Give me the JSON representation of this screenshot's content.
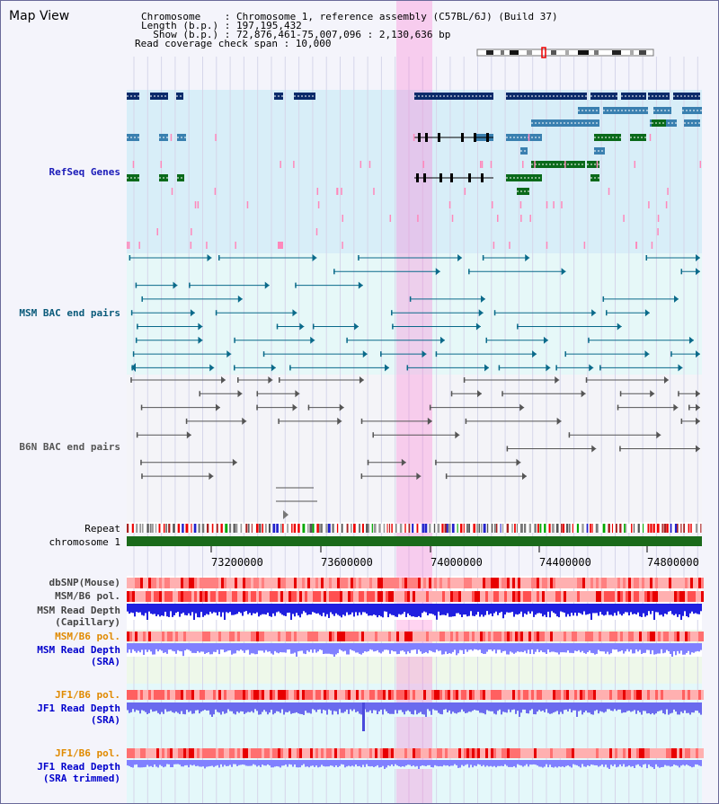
{
  "header": {
    "title": "Map View",
    "chromosome_line": "Chromosome    : Chromosome 1, reference assembly (C57BL/6J) (Build 37)",
    "length_line": "Length (b.p.) : 197,195,432",
    "show_line": "  Show (b.p.) : 72,876,461-75,007,096 : 2,130,636 bp",
    "coverage_line": "Read coverage check span : 10,000"
  },
  "tracks": {
    "refseq": "RefSeq Genes",
    "msm_bac": "MSM BAC end pairs",
    "b6n_bac": "B6N BAC end pairs",
    "repeat": "Repeat",
    "chromosome": "chromosome 1",
    "dbsnp": "dbSNP(Mouse)",
    "msm_pol": "MSM/B6 pol.",
    "msm_depth_cap_1": "MSM Read Depth",
    "msm_depth_cap_2": "(Capillary)",
    "msm_pol_2": "MSM/B6 pol.",
    "msm_depth_sra_1": "MSM Read Depth",
    "msm_depth_sra_2": "(SRA)",
    "jf1_pol": "JF1/B6 pol.",
    "jf1_depth_sra_1": "JF1 Read Depth",
    "jf1_depth_sra_2": "(SRA)",
    "jf1_pol_2": "JF1/B6 pol.",
    "jf1_depth_trim_1": "JF1 Read Depth",
    "jf1_depth_trim_2": "(SRA trimmed)"
  },
  "axis": {
    "ticks": [
      "73200000",
      "73600000",
      "74000000",
      "74400000",
      "74800000"
    ]
  },
  "colors": {
    "refseq_label": "#1a1ab8",
    "msm_bac_label": "#0a5a7a",
    "b6n_bac_label": "#555555",
    "gray_label": "#444444",
    "orange_label": "#e08a00",
    "blue_label": "#0000cc",
    "highlight": "#ff66cc"
  }
}
